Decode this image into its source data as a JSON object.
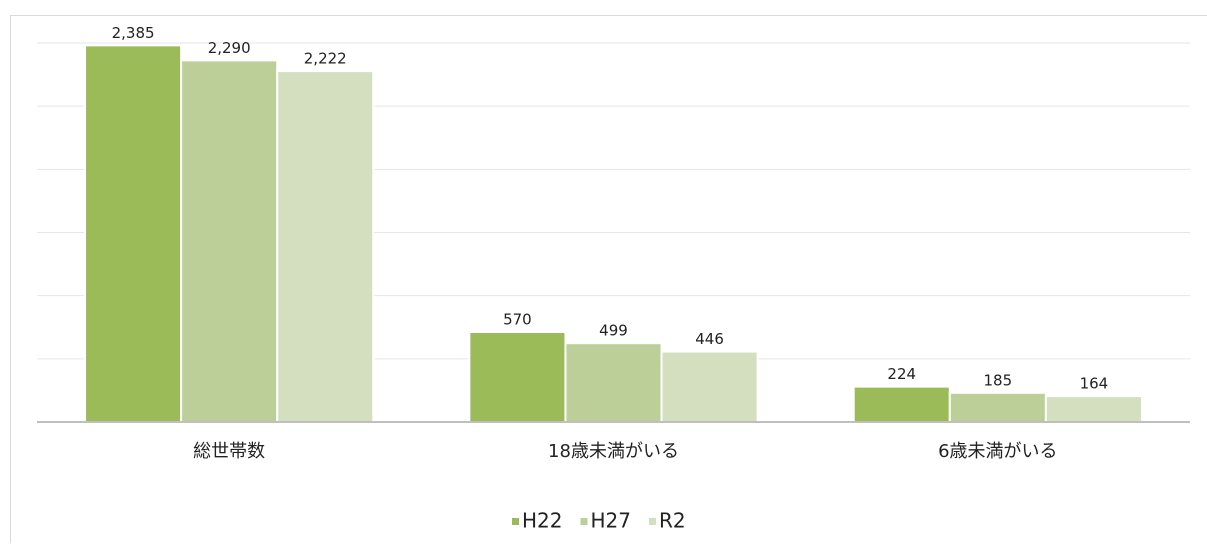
{
  "chart_data": {
    "type": "bar",
    "categories": [
      "総世帯数",
      "18歳未満がいる",
      "6歳未満がいる"
    ],
    "series": [
      {
        "name": "H22",
        "color": "#9bbb59",
        "values": [
          2385,
          570,
          224
        ],
        "value_labels": [
          "2,385",
          "570",
          "224"
        ]
      },
      {
        "name": "H27",
        "color": "#bccf98",
        "values": [
          2290,
          499,
          185
        ],
        "value_labels": [
          "2,290",
          "499",
          "185"
        ]
      },
      {
        "name": "R2",
        "color": "#d3dfbf",
        "values": [
          2222,
          446,
          164
        ],
        "value_labels": [
          "2,222",
          "446",
          "164"
        ]
      }
    ],
    "ylim": [
      0,
      2400
    ],
    "yticks": [
      0,
      400,
      800,
      1200,
      1600,
      2000,
      2400
    ],
    "grid": true,
    "legend": "bottom"
  }
}
